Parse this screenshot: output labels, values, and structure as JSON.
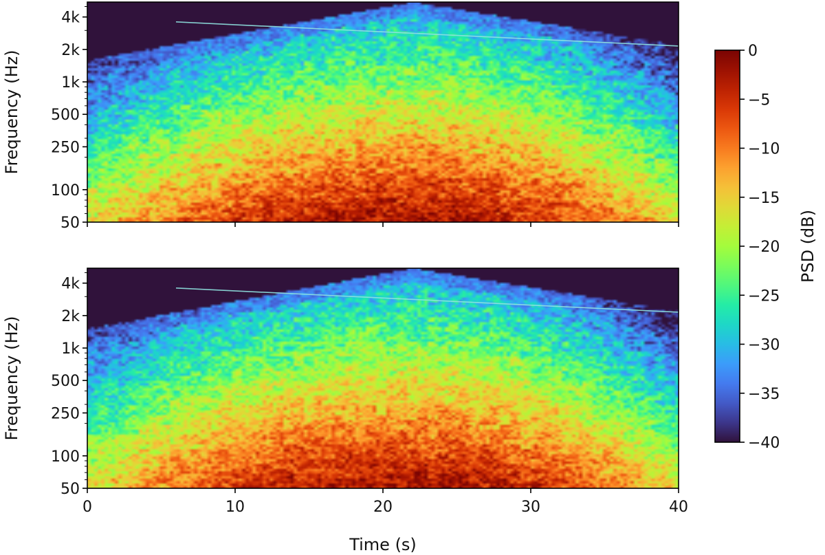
{
  "chart_data": [
    {
      "type": "heatmap",
      "panel": "top",
      "xlabel": "",
      "ylabel": "Frequency (Hz)",
      "xlim": [
        0,
        40
      ],
      "ylim": [
        50,
        5500
      ],
      "yscale": "log",
      "x_ticks": [
        0,
        10,
        20,
        30,
        40
      ],
      "x_tick_labels": [
        "",
        "",
        "",
        "",
        ""
      ],
      "y_ticks": [
        50,
        100,
        250,
        500,
        1000,
        2000,
        4000
      ],
      "y_tick_labels": [
        "50",
        "100",
        "250",
        "500",
        "1k",
        "2k",
        "4k"
      ],
      "colormap": "turbo",
      "value_range_db": [
        -40,
        0
      ],
      "peak_time_s": 22,
      "band_edge_hz": {
        "t0": 1600,
        "peak": 5500,
        "t40": 2200
      },
      "tone": {
        "start_s": 6,
        "f_start_hz": 3600,
        "f_end_hz": 2150
      }
    },
    {
      "type": "heatmap",
      "panel": "bottom",
      "xlabel": "Time (s)",
      "ylabel": "Frequency (Hz)",
      "xlim": [
        0,
        40
      ],
      "ylim": [
        50,
        5500
      ],
      "yscale": "log",
      "x_ticks": [
        0,
        10,
        20,
        30,
        40
      ],
      "x_tick_labels": [
        "0",
        "10",
        "20",
        "30",
        "40"
      ],
      "y_ticks": [
        50,
        100,
        250,
        500,
        1000,
        2000,
        4000
      ],
      "y_tick_labels": [
        "50",
        "100",
        "250",
        "500",
        "1k",
        "2k",
        "4k"
      ],
      "colormap": "turbo",
      "value_range_db": [
        -40,
        0
      ],
      "peak_time_s": 22,
      "band_edge_hz": {
        "t0": 1500,
        "peak": 5500,
        "t40": 2200
      },
      "tone": {
        "start_s": 6,
        "f_start_hz": 3600,
        "f_end_hz": 2150
      }
    }
  ],
  "colorbar": {
    "label": "PSD (dB)",
    "ticks": [
      0,
      -5,
      -10,
      -15,
      -20,
      -25,
      -30,
      -35,
      -40
    ],
    "tick_labels": [
      "0",
      "−5",
      "−10",
      "−15",
      "−20",
      "−25",
      "−30",
      "−35",
      "−40"
    ]
  }
}
